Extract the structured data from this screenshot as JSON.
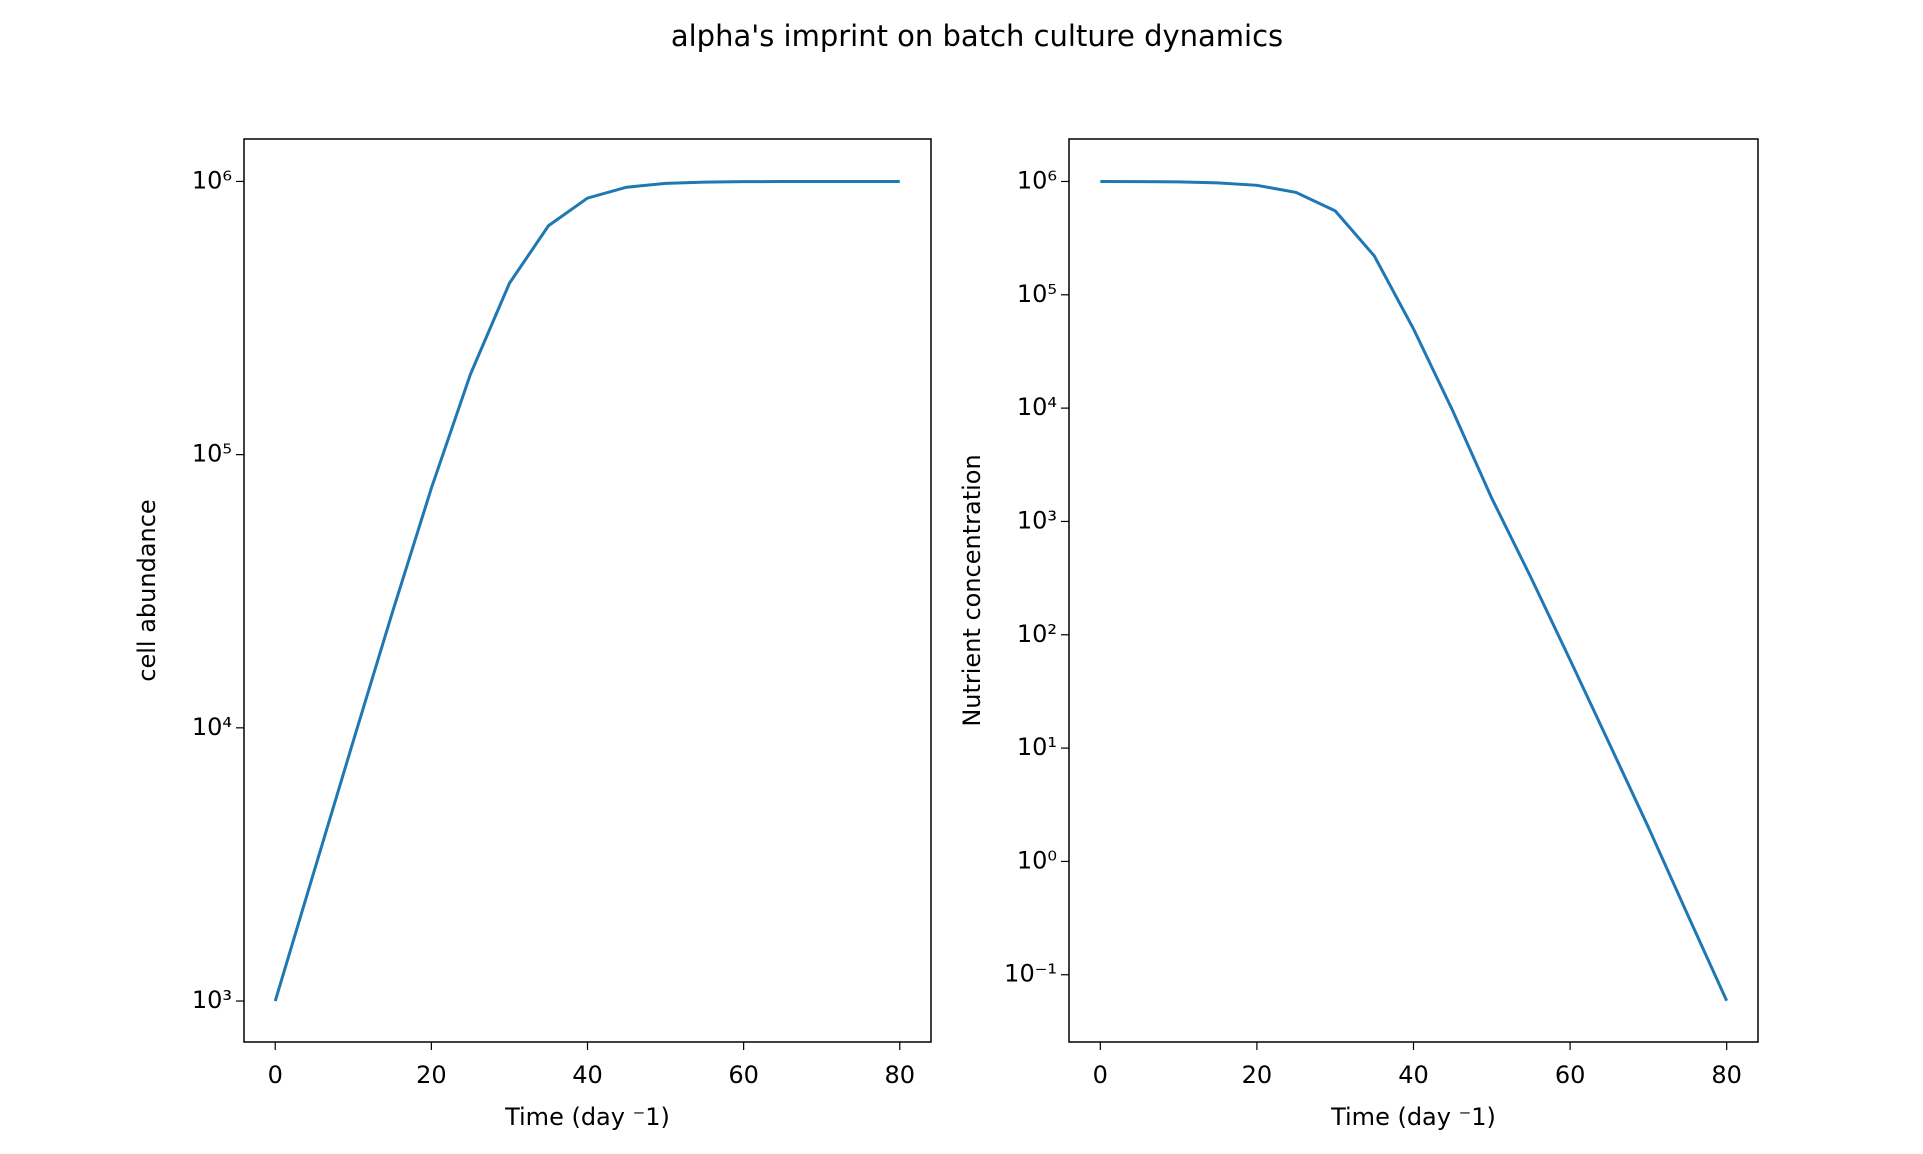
{
  "title": "alpha's imprint on batch culture dynamics",
  "chart_data": [
    {
      "type": "line",
      "xlabel": "Time (day ⁻1)",
      "ylabel": "cell abundance",
      "log_y": true,
      "x": [
        0,
        5,
        10,
        15,
        20,
        25,
        30,
        35,
        40,
        45,
        50,
        55,
        60,
        65,
        70,
        75,
        80
      ],
      "series": [
        {
          "color": "#1f77b4",
          "values": [
            1000,
            2998,
            8953,
            26427,
            75358,
            196734,
            423908,
            688468,
            869114,
            952290,
            983584,
            994470,
            998153,
            999384,
            999795,
            999932,
            999977
          ]
        }
      ],
      "xlim": [
        -4,
        84
      ],
      "xticks": [
        0,
        20,
        40,
        60,
        80
      ],
      "ylim": [
        708,
        1430000
      ],
      "yticks": [
        {
          "value": 1000,
          "label": "10³"
        },
        {
          "value": 10000,
          "label": "10⁴"
        },
        {
          "value": 100000,
          "label": "10⁵"
        },
        {
          "value": 1000000,
          "label": "10⁶"
        }
      ]
    },
    {
      "type": "line",
      "xlabel": "Time (day ⁻1)",
      "ylabel": "Nutrient concentration",
      "log_y": true,
      "x": [
        0,
        5,
        10,
        15,
        20,
        25,
        30,
        35,
        40,
        45,
        50,
        55,
        60,
        65,
        70,
        75,
        80
      ],
      "series": [
        {
          "color": "#1f77b4",
          "values": [
            1000000,
            998000,
            991000,
            973000,
            925000,
            800000,
            550000,
            220000,
            50000,
            9500,
            1600,
            320,
            60,
            11,
            2,
            0.34,
            0.059
          ]
        }
      ],
      "xlim": [
        -4,
        84
      ],
      "xticks": [
        0,
        20,
        40,
        60,
        80
      ],
      "ylim": [
        0.0255,
        2370000
      ],
      "yticks": [
        {
          "value": 0.1,
          "label": "10⁻¹"
        },
        {
          "value": 1,
          "label": "10⁰"
        },
        {
          "value": 10,
          "label": "10¹"
        },
        {
          "value": 100,
          "label": "10²"
        },
        {
          "value": 1000,
          "label": "10³"
        },
        {
          "value": 10000,
          "label": "10⁴"
        },
        {
          "value": 100000,
          "label": "10⁵"
        },
        {
          "value": 1000000,
          "label": "10⁶"
        }
      ]
    }
  ]
}
